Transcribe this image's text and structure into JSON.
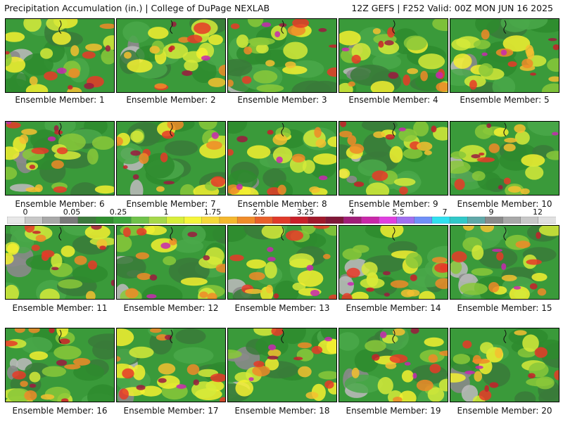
{
  "header": {
    "title_left": "Precipitation Accumulation (in.) | College of DuPage NEXLAB",
    "title_right": "12Z GEFS | F252 Valid: 00Z MON JUN 16 2025"
  },
  "colorbar": {
    "labels": [
      "0",
      "0.05",
      "0.25",
      "1",
      "1.75",
      "2.5",
      "3.25",
      "4",
      "5.5",
      "7",
      "9",
      "12"
    ],
    "colors": [
      "#e8e8e8",
      "#c8c8c8",
      "#a8a8a8",
      "#7a7a7a",
      "#3d7a3d",
      "#2f8f2f",
      "#3da53d",
      "#6fc24a",
      "#a5d84a",
      "#d8ee3a",
      "#f5f53a",
      "#f5d83a",
      "#f5b82e",
      "#f08c2a",
      "#e8602a",
      "#e03a2a",
      "#c8202a",
      "#a0182a",
      "#801838",
      "#a01e78",
      "#c828a8",
      "#e040e0",
      "#a070f0",
      "#7090f8",
      "#30e0f0",
      "#30c8c8",
      "#60a8a8",
      "#8a8a8a",
      "#a8a8a8",
      "#c8c8c8",
      "#e0e0e0"
    ]
  },
  "members": [
    {
      "caption": "Ensemble Member: 1"
    },
    {
      "caption": "Ensemble Member: 2"
    },
    {
      "caption": "Ensemble Member: 3"
    },
    {
      "caption": "Ensemble Member: 4"
    },
    {
      "caption": "Ensemble Member: 5"
    },
    {
      "caption": "Ensemble Member: 6"
    },
    {
      "caption": "Ensemble Member: 7"
    },
    {
      "caption": "Ensemble Member: 8"
    },
    {
      "caption": "Ensemble Member: 9"
    },
    {
      "caption": "Ensemble Member: 10"
    },
    {
      "caption": "Ensemble Member: 11"
    },
    {
      "caption": "Ensemble Member: 12"
    },
    {
      "caption": "Ensemble Member: 13"
    },
    {
      "caption": "Ensemble Member: 14"
    },
    {
      "caption": "Ensemble Member: 15"
    },
    {
      "caption": "Ensemble Member: 16"
    },
    {
      "caption": "Ensemble Member: 17"
    },
    {
      "caption": "Ensemble Member: 18"
    },
    {
      "caption": "Ensemble Member: 19"
    },
    {
      "caption": "Ensemble Member: 20"
    }
  ]
}
